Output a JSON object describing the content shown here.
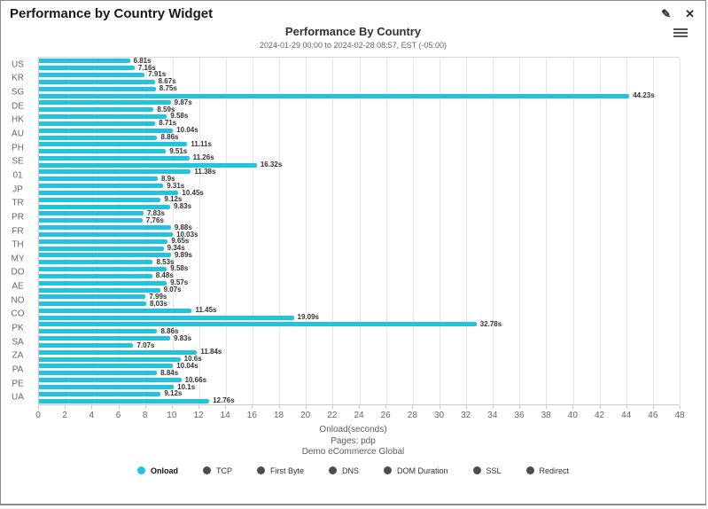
{
  "widget": {
    "title": "Performance by Country Widget",
    "edit_icon": "edit-pencil",
    "close_icon": "close-x",
    "menu_icon": "hamburger-context-menu"
  },
  "chart_data": {
    "type": "bar",
    "orientation": "horizontal",
    "title": "Performance By Country",
    "subtitle": "2024-01-29 00:00 to 2024-02-28 08:57, EST (-05:00)",
    "xlabel": "Onload(seconds)",
    "caption_lines": [
      "Onload(seconds)",
      "Pages: pdp",
      "Demo eCommerce Global"
    ],
    "xlim": [
      0,
      48
    ],
    "xticks": [
      0,
      2,
      4,
      6,
      8,
      10,
      12,
      14,
      16,
      18,
      20,
      22,
      24,
      26,
      28,
      30,
      32,
      34,
      36,
      38,
      40,
      42,
      44,
      46,
      48
    ],
    "grid": true,
    "bar_color": "#22c3dc",
    "value_suffix": "s",
    "legend_position": "bottom",
    "categories": [
      "US",
      "KR",
      "SG",
      "DE",
      "HK",
      "AU",
      "PH",
      "SE",
      "01",
      "JP",
      "TR",
      "PR",
      "FR",
      "TH",
      "MY",
      "DO",
      "AE",
      "NO",
      "CO",
      "PK",
      "SA",
      "ZA",
      "PA",
      "PE",
      "UA"
    ],
    "values": [
      [
        6.81,
        7.16
      ],
      [
        7.91,
        8.67
      ],
      [
        8.75,
        44.23
      ],
      [
        9.87,
        8.59
      ],
      [
        9.58,
        8.71
      ],
      [
        10.04,
        8.86
      ],
      [
        11.11,
        9.51
      ],
      [
        11.26,
        16.32
      ],
      [
        11.38,
        8.9
      ],
      [
        9.31,
        10.45
      ],
      [
        9.12,
        9.83
      ],
      [
        7.83,
        7.76
      ],
      [
        9.88,
        10.03
      ],
      [
        9.65,
        9.34
      ],
      [
        9.89,
        8.53
      ],
      [
        9.58,
        8.48
      ],
      [
        9.57,
        9.07
      ],
      [
        7.99,
        8.03
      ],
      [
        11.45,
        19.09
      ],
      [
        32.78,
        8.86
      ],
      [
        9.83,
        7.07
      ],
      [
        11.84,
        10.6
      ],
      [
        10.04,
        8.84
      ],
      [
        10.66,
        10.1
      ],
      [
        9.12,
        12.76
      ]
    ],
    "legend": [
      {
        "label": "Onload",
        "color": "#22c3dc",
        "active": true
      },
      {
        "label": "TCP",
        "color": "#4d4d4d",
        "active": false
      },
      {
        "label": "First Byte",
        "color": "#4d4d4d",
        "active": false
      },
      {
        "label": "DNS",
        "color": "#4d4d4d",
        "active": false
      },
      {
        "label": "DOM Duration",
        "color": "#4d4d4d",
        "active": false
      },
      {
        "label": "SSL",
        "color": "#4d4d4d",
        "active": false
      },
      {
        "label": "Redirect",
        "color": "#4d4d4d",
        "active": false
      }
    ]
  }
}
